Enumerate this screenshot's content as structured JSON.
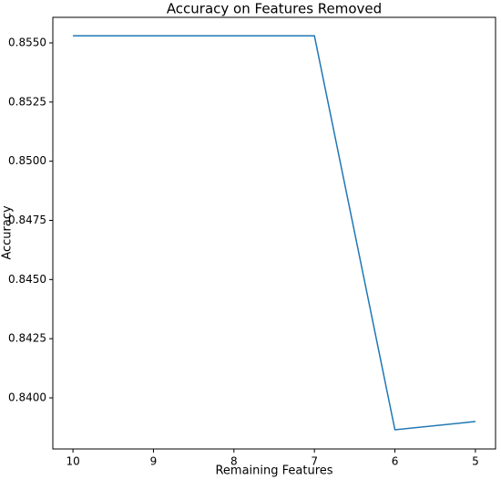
{
  "chart_data": {
    "type": "line",
    "title": "Accuracy on Features Removed",
    "xlabel": "Remaining Features",
    "ylabel": "Accuracy",
    "x": [
      10,
      9,
      8,
      7,
      6,
      5
    ],
    "series": [
      {
        "name": "Accuracy",
        "color": "#1f77b4",
        "values": [
          0.8553,
          0.8553,
          0.8553,
          0.8553,
          0.83865,
          0.839
        ]
      }
    ],
    "xlim": [
      10.25,
      4.75
    ],
    "xticks": [
      10,
      9,
      8,
      7,
      6,
      5
    ],
    "ylim": [
      0.83784,
      0.85608
    ],
    "yticks": [
      {
        "value": 0.84,
        "label": "0.8400"
      },
      {
        "value": 0.8425,
        "label": "0.8425"
      },
      {
        "value": 0.845,
        "label": "0.8450"
      },
      {
        "value": 0.8475,
        "label": "0.8475"
      },
      {
        "value": 0.85,
        "label": "0.8500"
      },
      {
        "value": 0.8525,
        "label": "0.8525"
      },
      {
        "value": 0.855,
        "label": "0.8550"
      }
    ],
    "grid": false
  }
}
